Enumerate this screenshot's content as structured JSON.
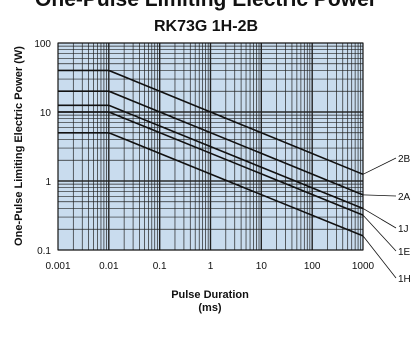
{
  "chart_data": {
    "type": "line",
    "title": "One-Pulse Limiting Electric Power",
    "subtitle": "RK73G 1H-2B",
    "xlabel_line1": "Pulse Duration",
    "xlabel_line2": "(ms)",
    "ylabel": "One-Pulse Limiting Electric Power (W)",
    "x_scale": "log",
    "y_scale": "log",
    "xlim": [
      0.001,
      1000
    ],
    "ylim": [
      0.1,
      100
    ],
    "grid": true,
    "plot_background": "#c9dcee",
    "x_tick_labels": [
      {
        "value": 0.001,
        "label": "0.001"
      },
      {
        "value": 0.01,
        "label": "0.01"
      },
      {
        "value": 0.1,
        "label": "0.1"
      },
      {
        "value": 1,
        "label": "1"
      },
      {
        "value": 10,
        "label": "10"
      },
      {
        "value": 100,
        "label": "100"
      },
      {
        "value": 1000,
        "label": "1000"
      }
    ],
    "y_tick_labels": [
      {
        "value": 0.1,
        "label": "0.1"
      },
      {
        "value": 1,
        "label": "1"
      },
      {
        "value": 10,
        "label": "10"
      },
      {
        "value": 100,
        "label": "100"
      }
    ],
    "series": [
      {
        "name": "2B",
        "points": [
          [
            0.001,
            40
          ],
          [
            0.01,
            40
          ],
          [
            1000,
            1.25
          ]
        ]
      },
      {
        "name": "2A",
        "points": [
          [
            0.001,
            20
          ],
          [
            0.01,
            20
          ],
          [
            1000,
            0.63
          ]
        ]
      },
      {
        "name": "1J",
        "points": [
          [
            0.001,
            12.5
          ],
          [
            0.01,
            12.5
          ],
          [
            1000,
            0.4
          ]
        ]
      },
      {
        "name": "1E",
        "points": [
          [
            0.001,
            10
          ],
          [
            0.01,
            10
          ],
          [
            1000,
            0.32
          ]
        ]
      },
      {
        "name": "1H",
        "points": [
          [
            0.001,
            5
          ],
          [
            0.01,
            5
          ],
          [
            1000,
            0.16
          ]
        ]
      }
    ]
  }
}
